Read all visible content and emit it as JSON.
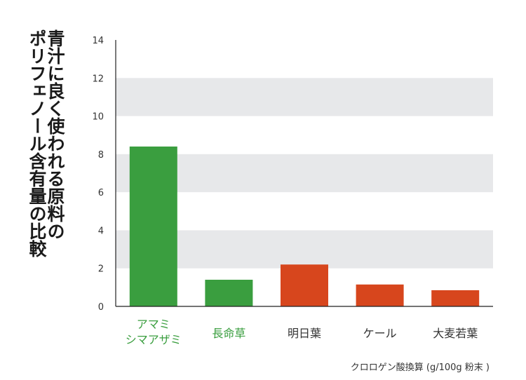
{
  "chart_data": {
    "type": "bar",
    "title": "青汁に良く使われる原料のポリフェノール含有量の比較",
    "title_lines": [
      "青汁に良く使われる原料の",
      "ポリフェノール含有量の比較"
    ],
    "categories": [
      "アマミシマアザミ",
      "長命草",
      "明日葉",
      "ケール",
      "大麦若葉"
    ],
    "category_label_lines": [
      [
        "アマミ",
        "シマアザミ"
      ],
      [
        "長命草"
      ],
      [
        "明日葉"
      ],
      [
        "ケール"
      ],
      [
        "大麦若葉"
      ]
    ],
    "values": [
      8.4,
      1.4,
      2.2,
      1.15,
      0.85
    ],
    "bar_colors": [
      "#3a9e3f",
      "#3a9e3f",
      "#d7461d",
      "#d7461d",
      "#d7461d"
    ],
    "label_colors": [
      "#3a9e3f",
      "#3a9e3f",
      "#333333",
      "#333333",
      "#333333"
    ],
    "xlabel": "",
    "ylabel": "",
    "unit_label": "クロロゲン酸換算 (g/100g 粉末 )",
    "ylim": [
      0,
      14
    ],
    "yticks": [
      0,
      2,
      4,
      6,
      8,
      10,
      12,
      14
    ],
    "grid_band_color": "#e7e8ea",
    "legend": "none"
  }
}
